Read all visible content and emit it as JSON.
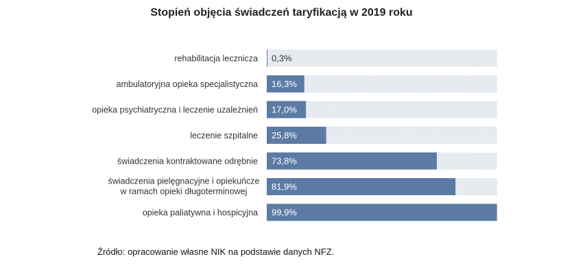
{
  "chart_data": {
    "type": "bar",
    "orientation": "horizontal",
    "title": "Stopień objęcia świadczeń taryfikacją w 2019 roku",
    "categories": [
      [
        "rehabilitacja lecznicza"
      ],
      [
        "ambulatoryjna opieka specjalistyczna"
      ],
      [
        "opieka psychiatryczna i leczenie uzależnień"
      ],
      [
        "leczenie szpitalne"
      ],
      [
        "świadczenia kontraktowane odrębnie"
      ],
      [
        "świadczenia pielęgnacyjne i opiekuńcze",
        "w ramach opieki  długoterminowej"
      ],
      [
        "opieka paliatywna i hospicyjna"
      ]
    ],
    "values": [
      0.3,
      16.3,
      17.0,
      25.8,
      73.8,
      81.9,
      99.9
    ],
    "value_labels": [
      "0,3%",
      "16,3%",
      "17,0%",
      "25,8%",
      "73,8%",
      "81,9%",
      "99,9%"
    ],
    "xlim": [
      0,
      100
    ],
    "bar_color": "#5b7ba5",
    "background_pattern": "hatched",
    "grid": false,
    "legend": "none"
  },
  "source": "Źródło: opracowanie własne NIK na podstawie danych NFZ."
}
